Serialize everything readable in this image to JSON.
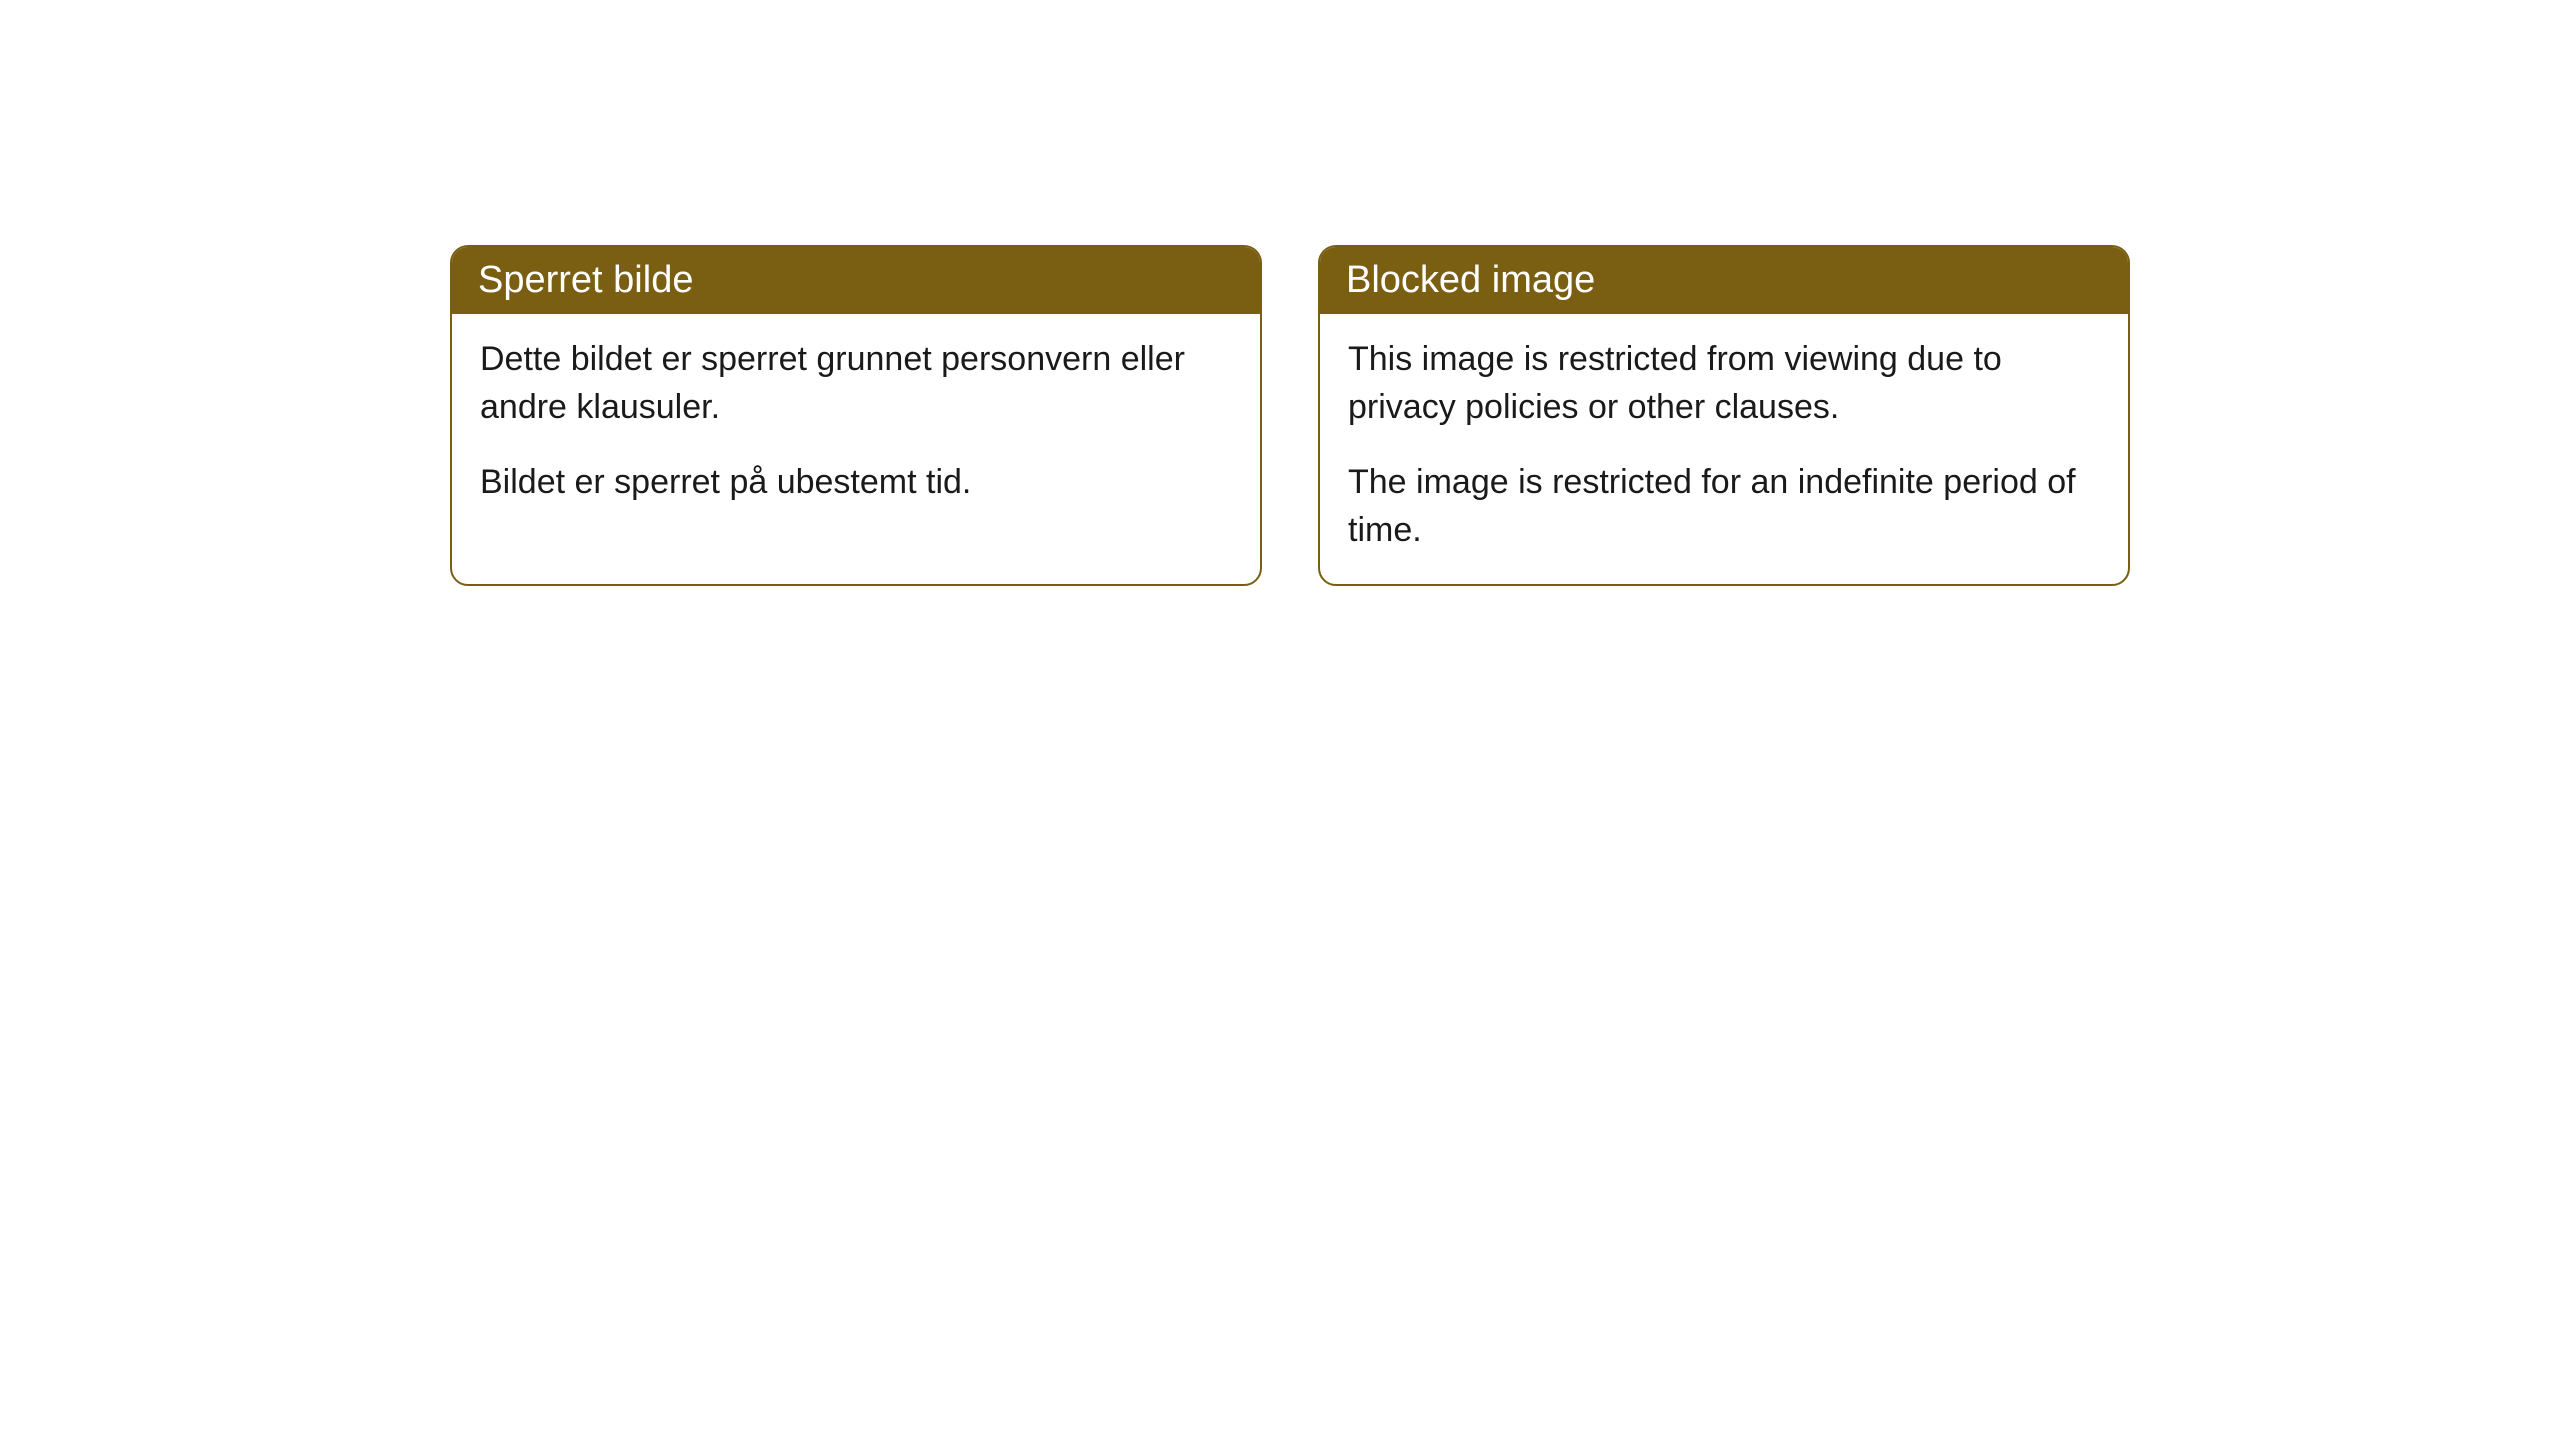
{
  "cards": [
    {
      "title": "Sperret bilde",
      "paragraph1": "Dette bildet er sperret grunnet personvern eller andre klausuler.",
      "paragraph2": "Bildet er sperret på ubestemt tid."
    },
    {
      "title": "Blocked image",
      "paragraph1": "This image is restricted from viewing due to privacy policies or other clauses.",
      "paragraph2": "The image is restricted for an indefinite period of time."
    }
  ],
  "styling": {
    "header_bg_color": "#7a5f12",
    "header_text_color": "#ffffff",
    "border_color": "#7a5f12",
    "body_bg_color": "#ffffff",
    "body_text_color": "#1a1a1a",
    "border_radius": 18,
    "title_fontsize": 38,
    "body_fontsize": 34
  }
}
